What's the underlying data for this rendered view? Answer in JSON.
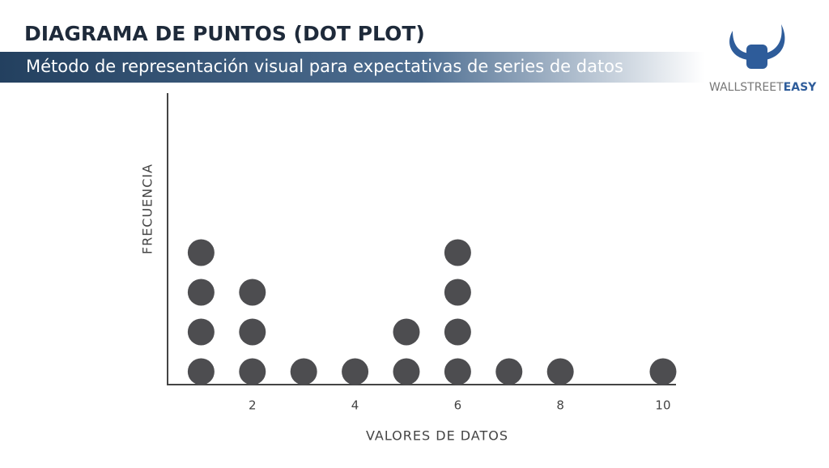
{
  "header": {
    "title": "DIAGRAMA DE PUNTOS (DOT PLOT)",
    "subtitle": "Método de representación visual para expectativas de series de datos",
    "brand_light": "WALLSTREET",
    "brand_bold": "EASY"
  },
  "chart_data": {
    "type": "dot",
    "x_label": "VALORES DE DATOS",
    "y_label": "FRECUENCIA",
    "x": [
      1,
      2,
      3,
      4,
      5,
      6,
      7,
      8,
      10
    ],
    "values": [
      4,
      3,
      1,
      1,
      2,
      4,
      1,
      1,
      1
    ],
    "color": "#4d4d50",
    "xlim": [
      0.3,
      10.3
    ],
    "xticks": [
      2,
      4,
      6,
      8,
      10
    ]
  }
}
